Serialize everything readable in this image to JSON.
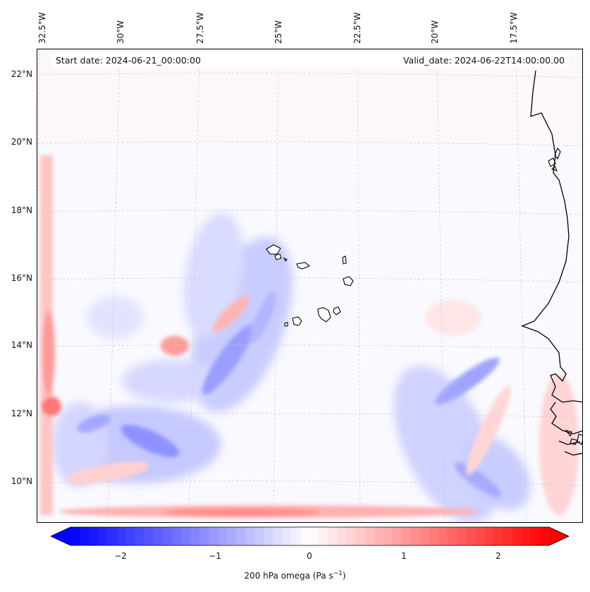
{
  "header": {
    "start_date": "Start date: 2024-06-21_00:00:00",
    "valid_date": "Valid_date: 2024-06-22T14:00:00.00"
  },
  "axes": {
    "longitude_labels": [
      "32.5°W",
      "30°W",
      "27.5°W",
      "25°W",
      "22.5°W",
      "20°W",
      "17.5°W"
    ],
    "latitude_labels": [
      "22°N",
      "20°N",
      "18°N",
      "16°N",
      "14°N",
      "12°N",
      "10°N"
    ]
  },
  "colorbar": {
    "ticks": [
      "−2",
      "−1",
      "0",
      "1",
      "2"
    ],
    "tick_values": [
      -2,
      -1,
      0,
      1,
      2
    ],
    "range": [
      -2.6,
      2.6
    ],
    "label_prefix": "200 hPa omega (Pa s",
    "label_exponent": "−1",
    "label_suffix": ")",
    "low_color": "#0000ff",
    "mid_color": "#ffffff",
    "high_color": "#ff0000"
  },
  "colors": {
    "coastline": "#000000",
    "grid": "#c8c8c8",
    "background": "#f9f9ff"
  }
}
